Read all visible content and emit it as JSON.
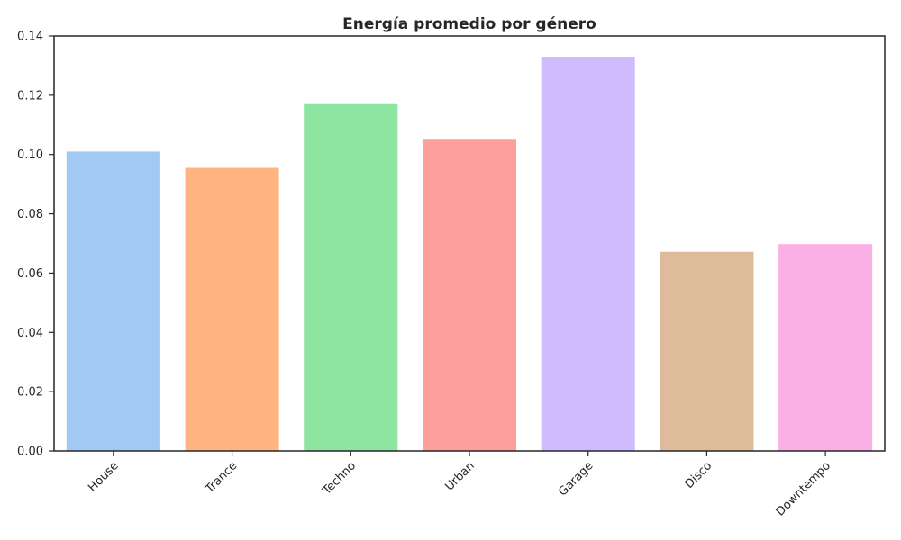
{
  "chart_data": {
    "type": "bar",
    "title": "Energía promedio por género",
    "xlabel": "",
    "ylabel": "",
    "categories": [
      "House",
      "Trance",
      "Techno",
      "Urban",
      "Garage",
      "Disco",
      "Downtempo"
    ],
    "values": [
      0.101,
      0.0955,
      0.117,
      0.105,
      0.133,
      0.0672,
      0.0698
    ],
    "colors": [
      "#a1c9f4",
      "#ffb482",
      "#8de5a1",
      "#ff9f9b",
      "#d0bbff",
      "#debb9b",
      "#fab0e4"
    ],
    "ylim": [
      0,
      0.14
    ],
    "yticks": [
      0.0,
      0.02,
      0.04,
      0.06,
      0.08,
      0.1,
      0.12,
      0.14
    ],
    "ytick_labels": [
      "0.00",
      "0.02",
      "0.04",
      "0.06",
      "0.08",
      "0.10",
      "0.12",
      "0.14"
    ],
    "grid": false,
    "xtick_rotation": -45
  }
}
